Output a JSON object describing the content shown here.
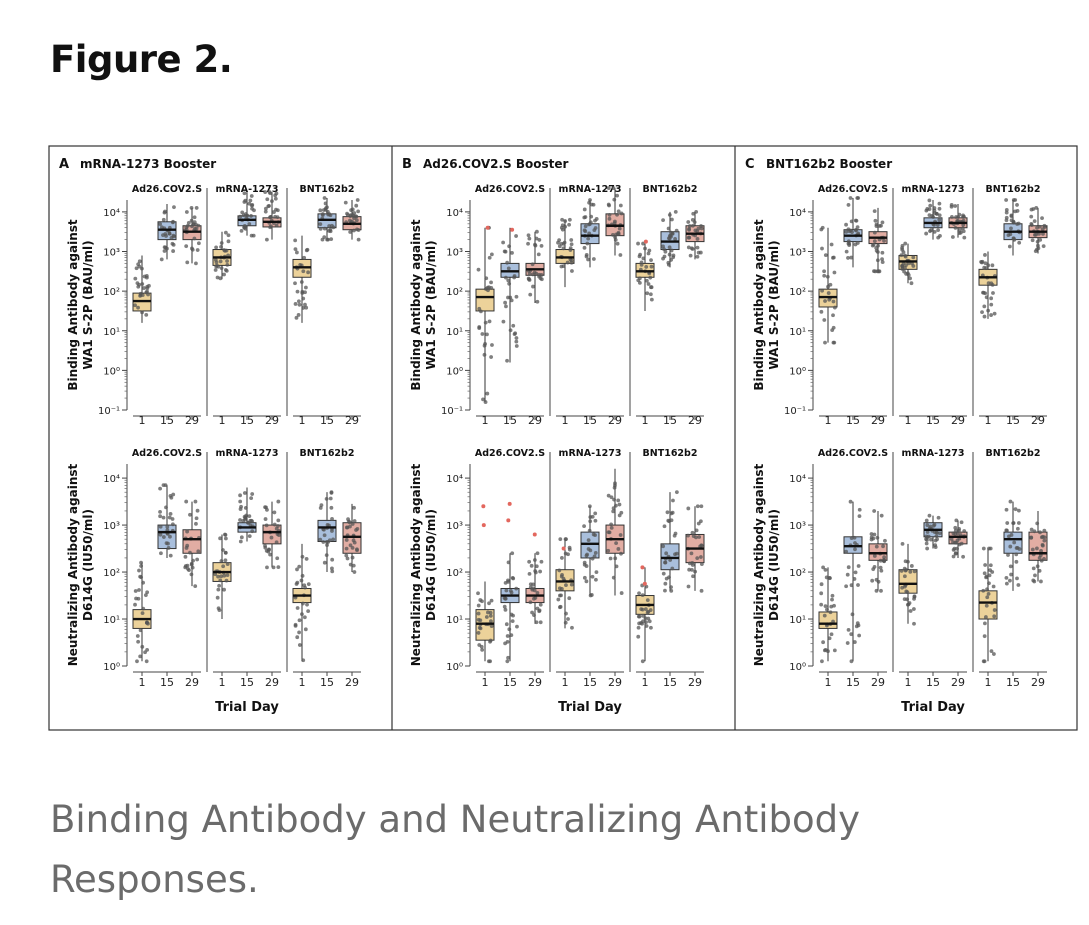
{
  "figure": {
    "title": "Figure 2.",
    "caption": "Binding Antibody and Neutralizing Antibody Responses."
  },
  "colors": {
    "day1": "#ecd29a",
    "day15": "#a9bfdc",
    "day29": "#e2ada3",
    "points": "#555555",
    "outlier": "#e3675e"
  },
  "chart_data": [
    {
      "type": "box",
      "panel": "A",
      "title": "mRNA-1273 Booster",
      "x_label": "Trial Day",
      "x_ticks": [
        "1",
        "15",
        "29"
      ],
      "groups": [
        "Ad26.COV2.S",
        "mRNA-1273",
        "BNT162b2"
      ],
      "rows": [
        {
          "ylabel_lines": [
            "Binding Antibody against",
            "WA1 S-2P (BAU/ml)"
          ],
          "y_ticks": [
            "10⁻¹",
            "10⁰",
            "10¹",
            "10²",
            "10³",
            "10⁴"
          ],
          "y_log_range": [
            -1,
            4.3
          ],
          "median_log": [
            [
              1.75,
              3.55,
              3.5
            ],
            [
              2.85,
              3.8,
              3.75
            ],
            [
              2.6,
              3.8,
              3.7
            ]
          ],
          "q1_log": [
            [
              1.5,
              3.3,
              3.3
            ],
            [
              2.65,
              3.65,
              3.62
            ],
            [
              2.35,
              3.6,
              3.55
            ]
          ],
          "q3_log": [
            [
              1.95,
              3.75,
              3.65
            ],
            [
              3.05,
              3.9,
              3.85
            ],
            [
              2.8,
              3.95,
              3.88
            ]
          ],
          "low_log": [
            [
              1.2,
              2.8,
              2.7
            ],
            [
              2.3,
              3.4,
              3.3
            ],
            [
              1.2,
              3.3,
              3.3
            ]
          ],
          "high_log": [
            [
              2.9,
              4.2,
              4.1
            ],
            [
              3.5,
              4.5,
              4.5
            ],
            [
              3.4,
              4.35,
              4.3
            ]
          ]
        },
        {
          "ylabel_lines": [
            "Neutralizing Antibody against",
            "D614G (IU50/ml)"
          ],
          "y_ticks": [
            "10⁰",
            "10¹",
            "10²",
            "10³",
            "10⁴"
          ],
          "y_log_range": [
            0,
            4.3
          ],
          "median_log": [
            [
              1.0,
              2.85,
              2.7
            ],
            [
              2.0,
              2.95,
              2.85
            ],
            [
              1.5,
              2.95,
              2.75
            ]
          ],
          "q1_log": [
            [
              0.8,
              2.5,
              2.4
            ],
            [
              1.8,
              2.85,
              2.6
            ],
            [
              1.35,
              2.65,
              2.4
            ]
          ],
          "q3_log": [
            [
              1.2,
              3.0,
              2.9
            ],
            [
              2.2,
              3.05,
              3.0
            ],
            [
              1.65,
              3.1,
              3.05
            ]
          ],
          "low_log": [
            [
              0.1,
              2.3,
              1.7
            ],
            [
              1.0,
              2.65,
              2.1
            ],
            [
              0.1,
              2.0,
              2.0
            ]
          ],
          "high_log": [
            [
              2.2,
              3.85,
              3.5
            ],
            [
              2.8,
              3.8,
              3.5
            ],
            [
              2.6,
              3.7,
              3.45
            ]
          ]
        }
      ]
    },
    {
      "type": "box",
      "panel": "B",
      "title": "Ad26.COV2.S Booster",
      "x_label": "Trial Day",
      "x_ticks": [
        "1",
        "15",
        "29"
      ],
      "groups": [
        "Ad26.COV2.S",
        "mRNA-1273",
        "BNT162b2"
      ],
      "rows": [
        {
          "ylabel_lines": [
            "Binding Antibody against",
            "WA1 S-2P (BAU/ml)"
          ],
          "y_ticks": [
            "10⁻¹",
            "10⁰",
            "10¹",
            "10²",
            "10³",
            "10⁴"
          ],
          "y_log_range": [
            -1,
            4.3
          ],
          "median_log": [
            [
              1.85,
              2.5,
              2.55
            ],
            [
              2.85,
              3.4,
              3.65
            ],
            [
              2.5,
              3.25,
              3.45
            ]
          ],
          "q1_log": [
            [
              1.5,
              2.35,
              2.4
            ],
            [
              2.7,
              3.2,
              3.4
            ],
            [
              2.35,
              3.05,
              3.25
            ]
          ],
          "q3_log": [
            [
              2.05,
              2.7,
              2.7
            ],
            [
              3.05,
              3.7,
              3.95
            ],
            [
              2.7,
              3.5,
              3.65
            ]
          ],
          "low_log": [
            [
              -0.8,
              0.2,
              1.7
            ],
            [
              2.1,
              2.6,
              2.9
            ],
            [
              1.5,
              2.6,
              2.8
            ]
          ],
          "high_log": [
            [
              3.6,
              3.6,
              3.5
            ],
            [
              3.8,
              4.3,
              4.6
            ],
            [
              3.2,
              4.0,
              4.0
            ]
          ]
        },
        {
          "ylabel_lines": [
            "Neutralizing Antibody against",
            "D614G (IU50/ml)"
          ],
          "y_ticks": [
            "10⁰",
            "10¹",
            "10²",
            "10³",
            "10⁴"
          ],
          "y_log_range": [
            0,
            4.3
          ],
          "median_log": [
            [
              0.9,
              1.5,
              1.5
            ],
            [
              1.8,
              2.6,
              2.7
            ],
            [
              1.3,
              2.3,
              2.5
            ]
          ],
          "q1_log": [
            [
              0.55,
              1.35,
              1.35
            ],
            [
              1.6,
              2.3,
              2.4
            ],
            [
              1.1,
              2.05,
              2.2
            ]
          ],
          "q3_log": [
            [
              1.2,
              1.65,
              1.65
            ],
            [
              2.05,
              2.85,
              3.0
            ],
            [
              1.5,
              2.6,
              2.8
            ]
          ],
          "low_log": [
            [
              0.1,
              0.1,
              0.9
            ],
            [
              0.8,
              1.5,
              1.5
            ],
            [
              0.1,
              1.6,
              1.6
            ]
          ],
          "high_log": [
            [
              1.8,
              2.4,
              2.4
            ],
            [
              2.7,
              3.4,
              4.2
            ],
            [
              2.1,
              3.7,
              3.4
            ]
          ]
        }
      ]
    },
    {
      "type": "box",
      "panel": "C",
      "title": "BNT162b2 Booster",
      "x_label": "Trial Day",
      "x_ticks": [
        "1",
        "15",
        "29"
      ],
      "groups": [
        "Ad26.COV2.S",
        "mRNA-1273",
        "BNT162b2"
      ],
      "rows": [
        {
          "ylabel_lines": [
            "Binding Antibody against",
            "WA1 S-2P (BAU/ml)"
          ],
          "y_ticks": [
            "10⁻¹",
            "10⁰",
            "10¹",
            "10²",
            "10³",
            "10⁴"
          ],
          "y_log_range": [
            -1,
            4.3
          ],
          "median_log": [
            [
              1.85,
              3.4,
              3.35
            ],
            [
              2.75,
              3.72,
              3.72
            ],
            [
              2.35,
              3.5,
              3.5
            ]
          ],
          "q1_log": [
            [
              1.6,
              3.25,
              3.2
            ],
            [
              2.55,
              3.6,
              3.6
            ],
            [
              2.15,
              3.3,
              3.35
            ]
          ],
          "q3_log": [
            [
              2.05,
              3.55,
              3.5
            ],
            [
              2.9,
              3.85,
              3.85
            ],
            [
              2.55,
              3.7,
              3.65
            ]
          ],
          "low_log": [
            [
              0.7,
              2.6,
              2.5
            ],
            [
              2.2,
              3.3,
              3.35
            ],
            [
              1.3,
              2.9,
              2.95
            ]
          ],
          "high_log": [
            [
              3.6,
              4.35,
              4.1
            ],
            [
              3.2,
              4.3,
              4.2
            ],
            [
              3.0,
              4.3,
              4.1
            ]
          ]
        },
        {
          "ylabel_lines": [
            "Neutralizing Antibody against",
            "D614G (IU50/ml)"
          ],
          "y_ticks": [
            "10⁰",
            "10¹",
            "10²",
            "10³",
            "10⁴"
          ],
          "y_log_range": [
            0,
            4.3
          ],
          "median_log": [
            [
              0.9,
              2.55,
              2.4
            ],
            [
              1.75,
              2.9,
              2.75
            ],
            [
              1.35,
              2.7,
              2.4
            ]
          ],
          "q1_log": [
            [
              0.8,
              2.4,
              2.25
            ],
            [
              1.55,
              2.75,
              2.6
            ],
            [
              1.0,
              2.4,
              2.25
            ]
          ],
          "q3_log": [
            [
              1.15,
              2.75,
              2.6
            ],
            [
              2.05,
              3.05,
              2.85
            ],
            [
              1.6,
              2.85,
              2.85
            ]
          ],
          "low_log": [
            [
              0.1,
              0.1,
              1.6
            ],
            [
              0.9,
              2.5,
              2.3
            ],
            [
              0.1,
              1.6,
              1.8
            ]
          ],
          "high_log": [
            [
              2.1,
              3.5,
              3.3
            ],
            [
              2.6,
              3.2,
              3.1
            ],
            [
              2.5,
              3.5,
              3.3
            ]
          ]
        }
      ]
    }
  ]
}
